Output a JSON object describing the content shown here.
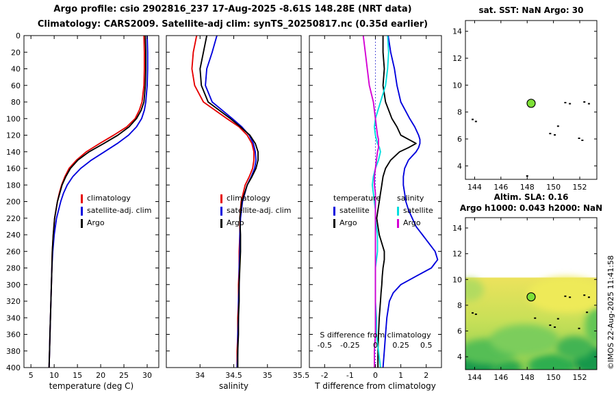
{
  "titles": {
    "line1": "Argo profile: csio 2902816_237 17-Aug-2025 -8.61S 148.28E (NRT data)",
    "line2": "Climatology: CARS2009. Satellite-adj clim: synTS_20250817.nc (0.35d earlier)"
  },
  "watermark": "©IMOS 22-Aug-2025 11:41:58",
  "colors": {
    "climatology": "#e60000",
    "satellite_clim": "#0000dd",
    "argo": "#000000",
    "sat_salinity": "#00dede",
    "argo_salinity": "#d400d4",
    "zero_line": "#2222cc",
    "float_dot": "#7ee037"
  },
  "legends": {
    "profile_items": [
      "climatology",
      "satellite-adj. clim",
      "Argo"
    ],
    "diff": {
      "temperature_title": "temperature",
      "temperature_items": [
        "satellite",
        "Argo"
      ],
      "salinity_title": "salinity",
      "salinity_items": [
        "satellite",
        "Argo"
      ]
    }
  },
  "chart_data": [
    {
      "type": "line",
      "name": "temperature-profile",
      "xlabel": "temperature (deg C)",
      "xlim": [
        3.5,
        32.5
      ],
      "xticks": [
        5,
        10,
        15,
        20,
        25,
        30
      ],
      "ylim": [
        0,
        400
      ],
      "yticks": [
        0,
        20,
        40,
        60,
        80,
        100,
        120,
        140,
        160,
        180,
        200,
        220,
        240,
        260,
        280,
        300,
        320,
        340,
        360,
        380,
        400
      ],
      "depths": [
        0,
        20,
        40,
        60,
        80,
        90,
        100,
        110,
        120,
        130,
        140,
        150,
        160,
        170,
        180,
        190,
        200,
        220,
        240,
        260,
        280,
        300,
        320,
        340,
        360,
        380,
        400
      ],
      "series": [
        {
          "name": "climatology",
          "color": "climatology",
          "values": [
            29.3,
            29.4,
            29.4,
            29.3,
            28.9,
            28.3,
            27.4,
            25.6,
            22.8,
            19.8,
            16.9,
            14.8,
            13.2,
            12.3,
            11.6,
            11.1,
            10.7,
            10.1,
            9.8,
            9.6,
            9.5,
            9.4,
            9.3,
            9.2,
            9.1,
            9.0,
            8.9
          ]
        },
        {
          "name": "satellite-adj-clim",
          "color": "satellite_clim",
          "values": [
            30.0,
            30.1,
            30.1,
            30.0,
            29.7,
            29.4,
            28.8,
            27.7,
            26.0,
            23.6,
            20.8,
            18.0,
            15.7,
            14.0,
            12.8,
            12.0,
            11.4,
            10.5,
            10.0,
            9.7,
            9.5,
            9.4,
            9.3,
            9.2,
            9.1,
            9.0,
            8.9
          ]
        },
        {
          "name": "argo",
          "color": "argo",
          "values": [
            29.6,
            29.7,
            29.7,
            29.6,
            29.3,
            28.7,
            27.7,
            26.1,
            23.7,
            20.7,
            17.5,
            15.1,
            13.5,
            12.5,
            11.7,
            11.2,
            10.7,
            10.1,
            9.8,
            9.6,
            9.5,
            9.4,
            9.3,
            9.2,
            9.1,
            9.0,
            8.9
          ]
        }
      ]
    },
    {
      "type": "line",
      "name": "salinity-profile",
      "xlabel": "salinity",
      "xlim": [
        33.5,
        35.5
      ],
      "xticks": [
        34,
        34.5,
        35,
        35.5
      ],
      "ylim": [
        0,
        400
      ],
      "yticks": [
        0,
        20,
        40,
        60,
        80,
        100,
        120,
        140,
        160,
        180,
        200,
        220,
        240,
        260,
        280,
        300,
        320,
        340,
        360,
        380,
        400
      ],
      "depths": [
        0,
        20,
        40,
        60,
        80,
        100,
        110,
        120,
        130,
        140,
        150,
        160,
        170,
        180,
        200,
        220,
        240,
        260,
        280,
        300,
        320,
        340,
        360,
        380,
        400
      ],
      "series": [
        {
          "name": "climatology",
          "color": "climatology",
          "values": [
            33.95,
            33.9,
            33.88,
            33.92,
            34.05,
            34.4,
            34.58,
            34.7,
            34.77,
            34.8,
            34.8,
            34.78,
            34.73,
            34.67,
            34.61,
            34.59,
            34.59,
            34.58,
            34.58,
            34.57,
            34.57,
            34.56,
            34.56,
            34.55,
            34.55
          ]
        },
        {
          "name": "satellite-adj-clim",
          "color": "satellite_clim",
          "values": [
            34.25,
            34.18,
            34.1,
            34.08,
            34.18,
            34.48,
            34.62,
            34.73,
            34.79,
            34.82,
            34.83,
            34.81,
            34.76,
            34.7,
            34.63,
            34.6,
            34.59,
            34.59,
            34.58,
            34.58,
            34.57,
            34.57,
            34.56,
            34.56,
            34.55
          ]
        },
        {
          "name": "argo",
          "color": "argo",
          "values": [
            34.1,
            34.05,
            34.0,
            34.02,
            34.12,
            34.45,
            34.6,
            34.74,
            34.82,
            34.86,
            34.86,
            34.83,
            34.77,
            34.7,
            34.62,
            34.59,
            34.6,
            34.6,
            34.59,
            34.58,
            34.58,
            34.57,
            34.57,
            34.56,
            34.56
          ]
        }
      ]
    },
    {
      "type": "line",
      "name": "difference-profile",
      "xlabel": "T difference from climatology",
      "xlim": [
        -2.6,
        2.6
      ],
      "xticks": [
        -2,
        -1,
        0,
        1,
        2
      ],
      "ylim": [
        0,
        400
      ],
      "yticks": [
        0,
        20,
        40,
        60,
        80,
        100,
        120,
        140,
        160,
        180,
        200,
        220,
        240,
        260,
        280,
        300,
        320,
        340,
        360,
        380,
        400
      ],
      "zero_line": true,
      "s_axis": {
        "label": "S difference from climatology",
        "tick_labels": [
          "-0.5",
          "-0.25",
          "0",
          "0.25",
          "0.5"
        ],
        "tick_positions": [
          -2,
          -1,
          0,
          1,
          2
        ]
      },
      "depths": [
        0,
        20,
        40,
        60,
        80,
        100,
        110,
        120,
        125,
        130,
        135,
        140,
        150,
        160,
        170,
        180,
        190,
        200,
        210,
        220,
        230,
        240,
        250,
        260,
        270,
        280,
        290,
        300,
        310,
        320,
        340,
        360,
        380,
        400
      ],
      "series": [
        {
          "name": "t-satellite",
          "color": "satellite_clim",
          "values": [
            0.5,
            0.6,
            0.75,
            0.85,
            1.0,
            1.35,
            1.55,
            1.7,
            1.75,
            1.75,
            1.7,
            1.6,
            1.3,
            1.15,
            1.1,
            1.1,
            1.15,
            1.2,
            1.3,
            1.45,
            1.6,
            1.85,
            2.1,
            2.35,
            2.45,
            2.2,
            1.6,
            1.0,
            0.7,
            0.55,
            0.45,
            0.4,
            0.35,
            0.3
          ]
        },
        {
          "name": "t-argo",
          "color": "argo",
          "values": [
            0.3,
            0.3,
            0.35,
            0.3,
            0.4,
            0.65,
            0.85,
            1.0,
            1.3,
            1.6,
            1.3,
            0.95,
            0.6,
            0.4,
            0.3,
            0.25,
            0.2,
            0.15,
            0.1,
            0.05,
            0.1,
            0.15,
            0.25,
            0.35,
            0.35,
            0.3,
            0.27,
            0.25,
            0.22,
            0.2,
            0.15,
            0.12,
            0.1,
            0.1
          ]
        },
        {
          "name": "s-satellite",
          "color": "sat_salinity",
          "xscale": 4,
          "values": [
            0.12,
            0.13,
            0.12,
            0.1,
            0.05,
            0.0,
            -0.01,
            0.0,
            0.01,
            0.02,
            0.04,
            0.05,
            0.03,
            0.0,
            -0.02,
            -0.03,
            -0.02,
            -0.01,
            0.0,
            0.0,
            0.01,
            0.02,
            0.02,
            0.02,
            0.01,
            0.0,
            0.0,
            0.0,
            0.0,
            0.0,
            0.01,
            0.01,
            0.03,
            0.05
          ]
        },
        {
          "name": "s-argo",
          "color": "argo_salinity",
          "xscale": 4,
          "values": [
            -0.12,
            -0.1,
            -0.08,
            -0.06,
            -0.02,
            0.0,
            0.01,
            0.02,
            0.03,
            0.03,
            0.03,
            0.02,
            0.01,
            0.0,
            -0.01,
            -0.01,
            0.0,
            0.0,
            0.0,
            0.0,
            0.0,
            0.0,
            0.0,
            0.0,
            0.0,
            0.0,
            0.0,
            0.0,
            0.0,
            0.0,
            0.0,
            0.0,
            -0.01,
            -0.01
          ]
        }
      ]
    },
    {
      "type": "scatter",
      "name": "sst-map",
      "title": "sat. SST: NaN Argo: 30",
      "xlim": [
        143.3,
        153.3
      ],
      "xticks": [
        144,
        146,
        148,
        150,
        152
      ],
      "ylim": [
        3,
        14.8
      ],
      "yticks": [
        4,
        6,
        8,
        10,
        12,
        14
      ],
      "float_position": {
        "x": 148.3,
        "y": 8.65
      },
      "land_points": [
        [
          143.85,
          7.45
        ],
        [
          144.1,
          7.3
        ],
        [
          149.75,
          6.4
        ],
        [
          150.1,
          6.3
        ],
        [
          150.9,
          8.7
        ],
        [
          151.25,
          8.62
        ],
        [
          152.35,
          8.75
        ],
        [
          152.7,
          8.62
        ],
        [
          151.95,
          6.05
        ],
        [
          152.2,
          5.9
        ],
        [
          150.35,
          6.95
        ],
        [
          148.0,
          3.25
        ]
      ]
    },
    {
      "type": "heatmap",
      "name": "sla-map",
      "title1": "Altim. SLA: 0.16",
      "title2": "Argo h1000: 0.043 h2000: NaN",
      "xlim": [
        143.3,
        153.3
      ],
      "xticks": [
        144,
        146,
        148,
        150,
        152
      ],
      "ylim": [
        3,
        14.8
      ],
      "yticks": [
        4,
        6,
        8,
        10,
        12,
        14
      ],
      "float_position": {
        "x": 148.3,
        "y": 8.65
      },
      "land_points": [
        [
          143.85,
          7.4
        ],
        [
          144.1,
          7.3
        ],
        [
          149.75,
          6.45
        ],
        [
          150.1,
          6.3
        ],
        [
          150.9,
          8.7
        ],
        [
          151.25,
          8.62
        ],
        [
          152.35,
          8.78
        ],
        [
          152.7,
          8.62
        ],
        [
          151.95,
          6.2
        ],
        [
          150.35,
          6.95
        ],
        [
          152.55,
          7.45
        ],
        [
          148.6,
          7.0
        ]
      ],
      "field": {
        "top": 10.15,
        "blobs": [
          {
            "x": 144.0,
            "y": 3.2,
            "rx": 1.7,
            "ry": 1.0,
            "color": "#18984c"
          },
          {
            "x": 146.4,
            "y": 3.1,
            "rx": 1.2,
            "ry": 0.7,
            "color": "#2aa84e"
          },
          {
            "x": 145.0,
            "y": 4.4,
            "rx": 2.2,
            "ry": 1.0,
            "color": "#55be54"
          },
          {
            "x": 149.9,
            "y": 3.3,
            "rx": 1.8,
            "ry": 0.9,
            "color": "#2fae50"
          },
          {
            "x": 152.9,
            "y": 3.7,
            "rx": 1.4,
            "ry": 1.1,
            "color": "#18984c"
          },
          {
            "x": 153.3,
            "y": 6.4,
            "rx": 0.9,
            "ry": 1.5,
            "color": "#63c657"
          },
          {
            "x": 147.8,
            "y": 5.3,
            "rx": 2.6,
            "ry": 1.2,
            "color": "#7ccd5b"
          },
          {
            "x": 143.6,
            "y": 9.2,
            "rx": 1.1,
            "ry": 0.9,
            "color": "#b2db60"
          },
          {
            "x": 151.0,
            "y": 8.8,
            "rx": 3.0,
            "ry": 1.4,
            "color": "#eeea58"
          },
          {
            "x": 151.6,
            "y": 4.7,
            "rx": 1.4,
            "ry": 0.9,
            "color": "#43b452"
          }
        ]
      }
    }
  ]
}
